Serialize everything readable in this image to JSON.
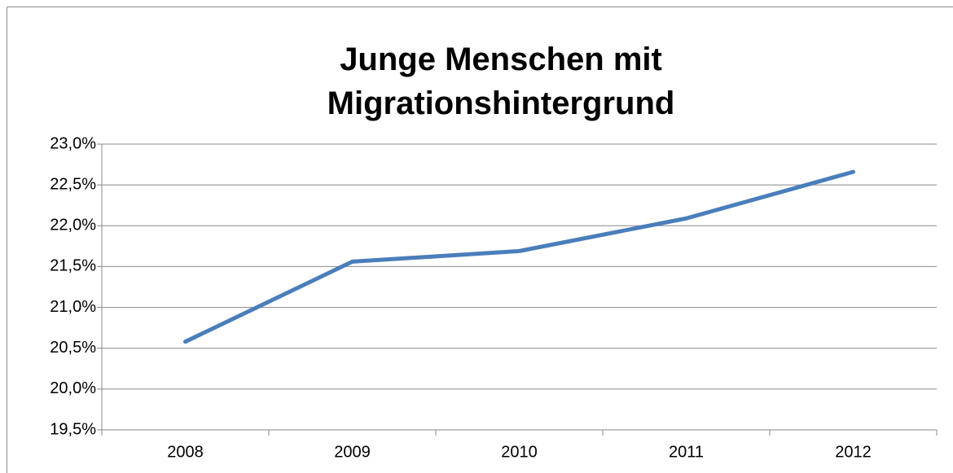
{
  "chart_data": {
    "type": "line",
    "title": "Junge Menschen mit Migrationshintergrund",
    "categories": [
      "2008",
      "2009",
      "2010",
      "2011",
      "2012"
    ],
    "series": [
      {
        "name": "Junge Menschen mit Migrationshintergrund",
        "color": "#4a7ebb",
        "values": [
          20.58,
          21.56,
          21.69,
          22.09,
          22.66
        ]
      }
    ],
    "ylim": [
      19.5,
      23.0
    ],
    "yticks": [
      {
        "value": 19.5,
        "label": "19,5%"
      },
      {
        "value": 20.0,
        "label": "20,0%"
      },
      {
        "value": 20.5,
        "label": "20,5%"
      },
      {
        "value": 21.0,
        "label": "21,0%"
      },
      {
        "value": 21.5,
        "label": "21,5%"
      },
      {
        "value": 22.0,
        "label": "22,0%"
      },
      {
        "value": 22.5,
        "label": "22,5%"
      },
      {
        "value": 23.0,
        "label": "23,0%"
      }
    ],
    "grid": true
  }
}
